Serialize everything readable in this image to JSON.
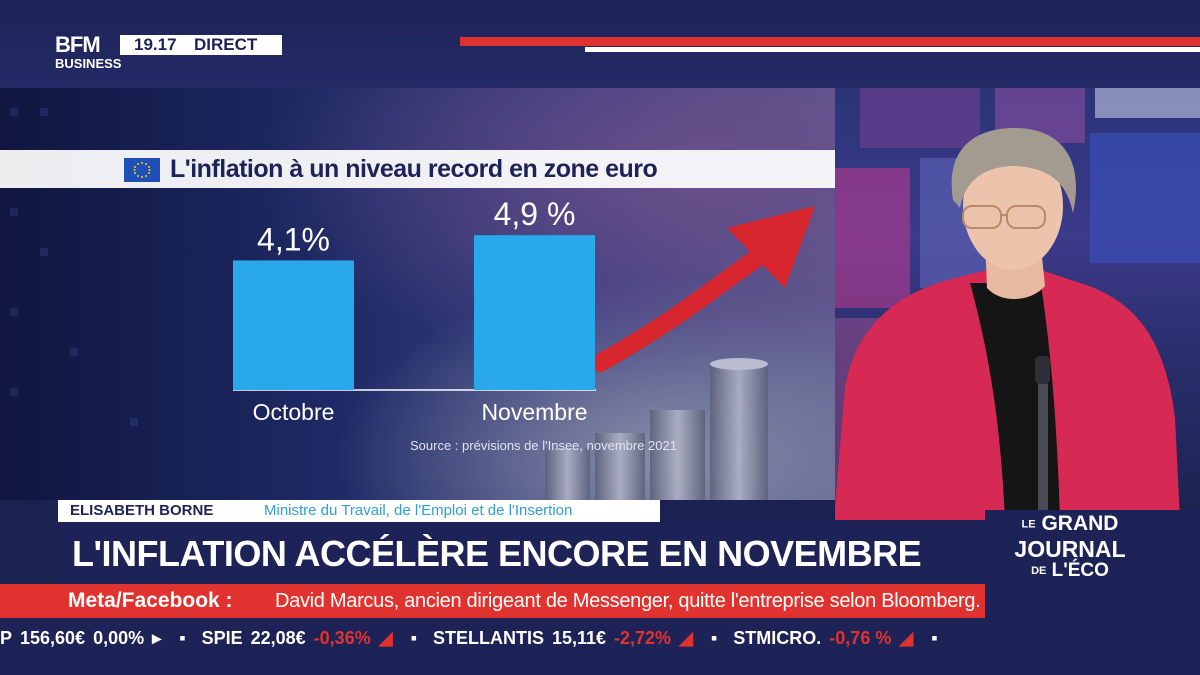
{
  "channel": {
    "logo_line1": "BFM",
    "logo_line2": "BUSINESS",
    "time": "19.17",
    "live_label": "DIRECT"
  },
  "graphic": {
    "title": "L'inflation à un niveau record en zone euro",
    "source": "Source : prévisions de l'Insee, novembre 2021",
    "colors": {
      "bar": "#2aa8ec",
      "arrow": "#d8262e",
      "title_text": "#1e2357"
    }
  },
  "chart_data": {
    "type": "bar",
    "title": "L'inflation à un niveau record en zone euro",
    "categories": [
      "Octobre",
      "Novembre"
    ],
    "values": [
      4.1,
      4.9
    ],
    "data_labels": [
      "4,1%",
      "4,9 %"
    ],
    "xlabel": "",
    "ylabel": "",
    "ylim": [
      0,
      5
    ],
    "grid": false,
    "legend": "none"
  },
  "lower_third": {
    "speaker_name": "ELISABETH BORNE",
    "speaker_role": "Ministre du Travail, de l'Emploi et de l'Insertion",
    "headline": "L'INFLATION ACCÉLÈRE ENCORE EN NOVEMBRE"
  },
  "show": {
    "line1": "GRAND",
    "line2": "JOURNAL",
    "line3": "L'ÉCO",
    "prefix1": "LE",
    "prefix3": "DE"
  },
  "crawl": {
    "source": "Meta/Facebook :",
    "text": "David Marcus, ancien dirigeant de Messenger, quitte l'entreprise selon Bloomberg."
  },
  "ticker": [
    {
      "name": "P",
      "value": "156,60€",
      "change": "0,00%",
      "dir": "flat"
    },
    {
      "name": "SPIE",
      "value": "22,08€",
      "change": "-0,36%",
      "dir": "down"
    },
    {
      "name": "STELLANTIS",
      "value": "15,11€",
      "change": "-2,72%",
      "dir": "down"
    },
    {
      "name": "STMICRO.",
      "value": "",
      "change": "-0,76 %",
      "dir": "down"
    }
  ]
}
